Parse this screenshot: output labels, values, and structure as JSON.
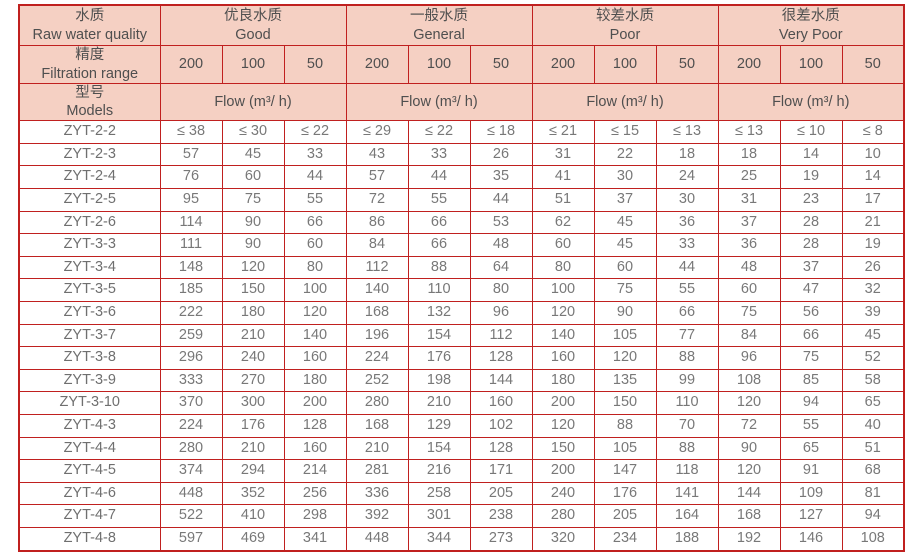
{
  "colors": {
    "border_red": "#c0201f",
    "header_pink": "#f5d0c3",
    "header_text": "#4f4f4f",
    "cell_text": "#787878"
  },
  "header": {
    "corner_quality": {
      "zh": "水质",
      "en": "Raw water quality"
    },
    "corner_precision": {
      "zh": "精度",
      "en": "Filtration range"
    },
    "corner_models": {
      "zh": "型号",
      "en": "Models"
    },
    "quality_groups": [
      {
        "zh": "优良水质",
        "en": "Good"
      },
      {
        "zh": "一般水质",
        "en": "General"
      },
      {
        "zh": "较差水质",
        "en": "Poor"
      },
      {
        "zh": "很差水质",
        "en": "Very Poor"
      }
    ],
    "precision_values": [
      "200",
      "100",
      "50",
      "200",
      "100",
      "50",
      "200",
      "100",
      "50",
      "200",
      "100",
      "50"
    ],
    "flow_label": "Flow (m³/ h)"
  },
  "table": {
    "rows": [
      {
        "model": "ZYT-2-2",
        "values": [
          "≤ 38",
          "≤ 30",
          "≤ 22",
          "≤ 29",
          "≤ 22",
          "≤ 18",
          "≤ 21",
          "≤ 15",
          "≤ 13",
          "≤ 13",
          "≤ 10",
          "≤ 8"
        ]
      },
      {
        "model": "ZYT-2-3",
        "values": [
          "57",
          "45",
          "33",
          "43",
          "33",
          "26",
          "31",
          "22",
          "18",
          "18",
          "14",
          "10"
        ]
      },
      {
        "model": "ZYT-2-4",
        "values": [
          "76",
          "60",
          "44",
          "57",
          "44",
          "35",
          "41",
          "30",
          "24",
          "25",
          "19",
          "14"
        ]
      },
      {
        "model": "ZYT-2-5",
        "values": [
          "95",
          "75",
          "55",
          "72",
          "55",
          "44",
          "51",
          "37",
          "30",
          "31",
          "23",
          "17"
        ]
      },
      {
        "model": "ZYT-2-6",
        "values": [
          "114",
          "90",
          "66",
          "86",
          "66",
          "53",
          "62",
          "45",
          "36",
          "37",
          "28",
          "21"
        ]
      },
      {
        "model": "ZYT-3-3",
        "values": [
          "111",
          "90",
          "60",
          "84",
          "66",
          "48",
          "60",
          "45",
          "33",
          "36",
          "28",
          "19"
        ]
      },
      {
        "model": "ZYT-3-4",
        "values": [
          "148",
          "120",
          "80",
          "112",
          "88",
          "64",
          "80",
          "60",
          "44",
          "48",
          "37",
          "26"
        ]
      },
      {
        "model": "ZYT-3-5",
        "values": [
          "185",
          "150",
          "100",
          "140",
          "110",
          "80",
          "100",
          "75",
          "55",
          "60",
          "47",
          "32"
        ]
      },
      {
        "model": "ZYT-3-6",
        "values": [
          "222",
          "180",
          "120",
          "168",
          "132",
          "96",
          "120",
          "90",
          "66",
          "75",
          "56",
          "39"
        ]
      },
      {
        "model": "ZYT-3-7",
        "values": [
          "259",
          "210",
          "140",
          "196",
          "154",
          "112",
          "140",
          "105",
          "77",
          "84",
          "66",
          "45"
        ]
      },
      {
        "model": "ZYT-3-8",
        "values": [
          "296",
          "240",
          "160",
          "224",
          "176",
          "128",
          "160",
          "120",
          "88",
          "96",
          "75",
          "52"
        ]
      },
      {
        "model": "ZYT-3-9",
        "values": [
          "333",
          "270",
          "180",
          "252",
          "198",
          "144",
          "180",
          "135",
          "99",
          "108",
          "85",
          "58"
        ]
      },
      {
        "model": "ZYT-3-10",
        "values": [
          "370",
          "300",
          "200",
          "280",
          "210",
          "160",
          "200",
          "150",
          "110",
          "120",
          "94",
          "65"
        ]
      },
      {
        "model": "ZYT-4-3",
        "values": [
          "224",
          "176",
          "128",
          "168",
          "129",
          "102",
          "120",
          "88",
          "70",
          "72",
          "55",
          "40"
        ]
      },
      {
        "model": "ZYT-4-4",
        "values": [
          "280",
          "210",
          "160",
          "210",
          "154",
          "128",
          "150",
          "105",
          "88",
          "90",
          "65",
          "51"
        ]
      },
      {
        "model": "ZYT-4-5",
        "values": [
          "374",
          "294",
          "214",
          "281",
          "216",
          "171",
          "200",
          "147",
          "118",
          "120",
          "91",
          "68"
        ]
      },
      {
        "model": "ZYT-4-6",
        "values": [
          "448",
          "352",
          "256",
          "336",
          "258",
          "205",
          "240",
          "176",
          "141",
          "144",
          "109",
          "81"
        ]
      },
      {
        "model": "ZYT-4-7",
        "values": [
          "522",
          "410",
          "298",
          "392",
          "301",
          "238",
          "280",
          "205",
          "164",
          "168",
          "127",
          "94"
        ]
      },
      {
        "model": "ZYT-4-8",
        "values": [
          "597",
          "469",
          "341",
          "448",
          "344",
          "273",
          "320",
          "234",
          "188",
          "192",
          "146",
          "108"
        ]
      }
    ]
  }
}
